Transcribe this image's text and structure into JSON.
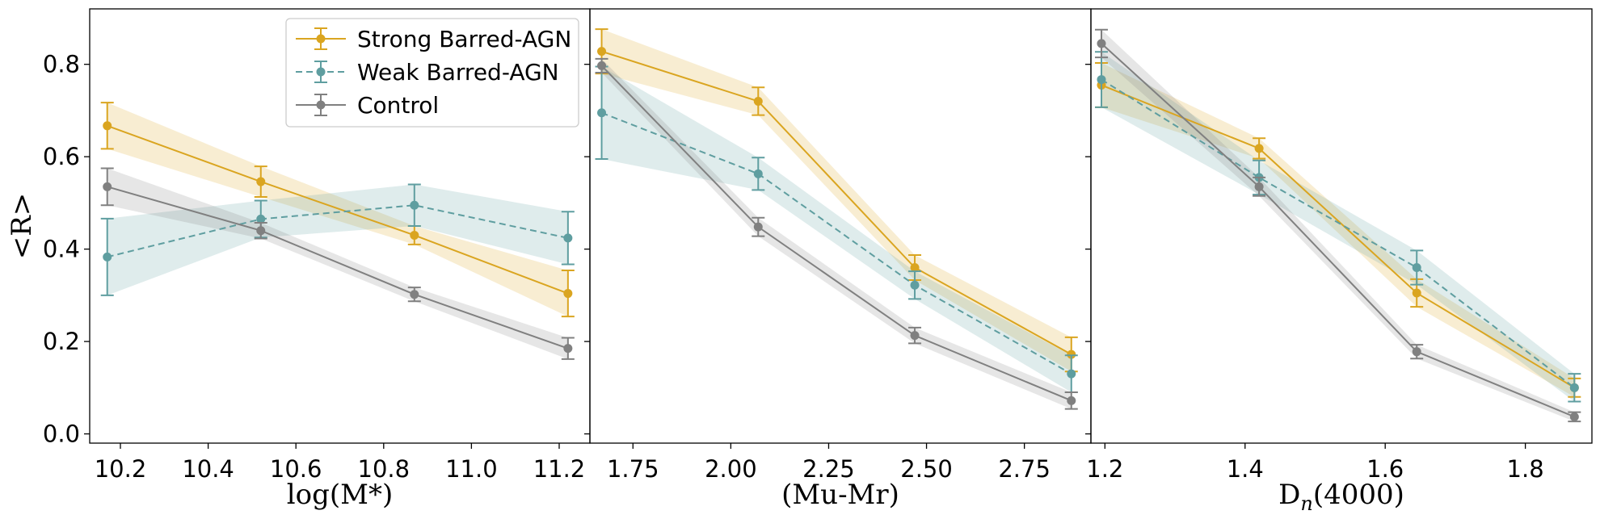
{
  "chart_data": {
    "type": "line",
    "ylabel": "<R>",
    "ylim": [
      -0.02,
      0.92
    ],
    "yticks": [
      0.0,
      0.2,
      0.4,
      0.6,
      0.8
    ],
    "ytick_labels": [
      "0.0",
      "0.2",
      "0.4",
      "0.6",
      "0.8"
    ],
    "legend": {
      "location": "top-right of first panel",
      "entries": [
        {
          "name": "Strong Barred-AGN",
          "color": "#DAA520",
          "dashed": false
        },
        {
          "name": "Weak Barred-AGN",
          "color": "#5F9EA0",
          "dashed": true
        },
        {
          "name": "Control",
          "color": "#808080",
          "dashed": false
        }
      ]
    },
    "panels": [
      {
        "xlabel": "log(M*)",
        "xlim": [
          10.13,
          11.27
        ],
        "xticks": [
          10.2,
          10.4,
          10.6,
          10.8,
          11.0,
          11.2
        ],
        "xtick_labels": [
          "10.2",
          "10.4",
          "10.6",
          "10.8",
          "11.0",
          "11.2"
        ],
        "series": [
          {
            "name": "Strong Barred-AGN",
            "color": "#DAA520",
            "dashed": false,
            "x": [
              10.17,
              10.52,
              10.87,
              11.22
            ],
            "y": [
              0.667,
              0.546,
              0.43,
              0.304
            ],
            "err": [
              0.05,
              0.033,
              0.02,
              0.05
            ]
          },
          {
            "name": "Weak Barred-AGN",
            "color": "#5F9EA0",
            "dashed": true,
            "x": [
              10.17,
              10.52,
              10.87,
              11.22
            ],
            "y": [
              0.383,
              0.465,
              0.495,
              0.424
            ],
            "err": [
              0.083,
              0.04,
              0.045,
              0.057
            ]
          },
          {
            "name": "Control",
            "color": "#808080",
            "dashed": false,
            "x": [
              10.17,
              10.52,
              10.87,
              11.22
            ],
            "y": [
              0.535,
              0.44,
              0.302,
              0.185
            ],
            "err": [
              0.04,
              0.017,
              0.015,
              0.023
            ]
          }
        ]
      },
      {
        "xlabel": "(Mu-Mr)",
        "xlim": [
          1.64,
          2.92
        ],
        "xticks": [
          1.75,
          2.0,
          2.25,
          2.5,
          2.75
        ],
        "xtick_labels": [
          "1.75",
          "2.00",
          "2.25",
          "2.50",
          "2.75"
        ],
        "series": [
          {
            "name": "Strong Barred-AGN",
            "color": "#DAA520",
            "dashed": false,
            "x": [
              1.67,
              2.07,
              2.47,
              2.87
            ],
            "y": [
              0.828,
              0.72,
              0.36,
              0.172
            ],
            "err": [
              0.048,
              0.03,
              0.027,
              0.037
            ]
          },
          {
            "name": "Weak Barred-AGN",
            "color": "#5F9EA0",
            "dashed": true,
            "x": [
              1.67,
              2.07,
              2.47,
              2.87
            ],
            "y": [
              0.695,
              0.563,
              0.322,
              0.13
            ],
            "err": [
              0.1,
              0.035,
              0.03,
              0.04
            ]
          },
          {
            "name": "Control",
            "color": "#808080",
            "dashed": false,
            "x": [
              1.67,
              2.07,
              2.47,
              2.87
            ],
            "y": [
              0.797,
              0.448,
              0.213,
              0.072
            ],
            "err": [
              0.015,
              0.02,
              0.017,
              0.018
            ]
          }
        ]
      },
      {
        "xlabel": "D",
        "xlabel_sub": "n",
        "xlabel_suffix": "(4000)",
        "xlim": [
          1.18,
          1.895
        ],
        "xticks": [
          1.2,
          1.4,
          1.6,
          1.8
        ],
        "xtick_labels": [
          "1.2",
          "1.4",
          "1.6",
          "1.8"
        ],
        "series": [
          {
            "name": "Strong Barred-AGN",
            "color": "#DAA520",
            "dashed": false,
            "x": [
              1.195,
              1.42,
              1.645,
              1.87
            ],
            "y": [
              0.755,
              0.618,
              0.305,
              0.1
            ],
            "err": [
              0.048,
              0.022,
              0.03,
              0.02
            ]
          },
          {
            "name": "Weak Barred-AGN",
            "color": "#5F9EA0",
            "dashed": true,
            "x": [
              1.195,
              1.42,
              1.645,
              1.87
            ],
            "y": [
              0.767,
              0.555,
              0.36,
              0.1
            ],
            "err": [
              0.06,
              0.037,
              0.037,
              0.03
            ]
          },
          {
            "name": "Control",
            "color": "#808080",
            "dashed": false,
            "x": [
              1.195,
              1.42,
              1.645,
              1.87
            ],
            "y": [
              0.845,
              0.535,
              0.178,
              0.037
            ],
            "err": [
              0.03,
              0.02,
              0.015,
              0.01
            ]
          }
        ]
      }
    ]
  }
}
